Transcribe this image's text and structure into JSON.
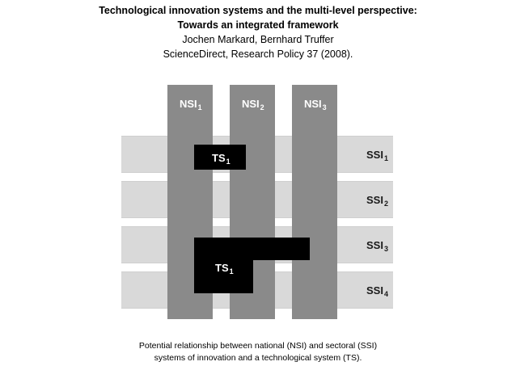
{
  "header": {
    "title_line1": "Technological innovation systems and the multi-level perspective:",
    "title_line2": "Towards an integrated framework",
    "authors": "Jochen Markard, Bernhard Truffer",
    "source": "ScienceDirect, Research Policy 37 (2008)."
  },
  "diagram": {
    "columns": [
      {
        "label": "NSI",
        "sub": "1"
      },
      {
        "label": "NSI",
        "sub": "2"
      },
      {
        "label": "NSI",
        "sub": "3"
      }
    ],
    "rows": [
      {
        "label": "SSI",
        "sub": "1"
      },
      {
        "label": "SSI",
        "sub": "2"
      },
      {
        "label": "SSI",
        "sub": "3"
      },
      {
        "label": "SSI",
        "sub": "4"
      }
    ],
    "ts_small": {
      "label": "TS",
      "sub": "1"
    },
    "ts_large": {
      "label": "TS",
      "sub": "1"
    },
    "colors": {
      "column": "#8a8a8a",
      "band": "#d9d9d9",
      "ts": "#000000"
    }
  },
  "caption": {
    "line1": "Potential relationship between national (NSI) and sectoral (SSI)",
    "line2": "systems of innovation and a technological system (TS)."
  }
}
